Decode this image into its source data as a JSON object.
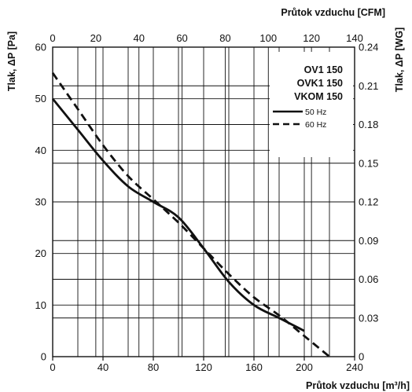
{
  "chart_data": {
    "type": "line",
    "title": "",
    "x_bottom": {
      "label": "Průtok vzduchu [m³/h]",
      "range": [
        0,
        240
      ],
      "ticks": [
        "0",
        "40",
        "80",
        "120",
        "160",
        "200",
        "240"
      ]
    },
    "x_top": {
      "label": "Průtok vzduchu [CFM]",
      "range": [
        0,
        140
      ],
      "ticks": [
        "0",
        "20",
        "40",
        "60",
        "80",
        "100",
        "120",
        "140"
      ]
    },
    "y_left": {
      "label": "Tlak, ΔP [Pa]",
      "range": [
        0,
        60
      ],
      "ticks": [
        "0",
        "10",
        "20",
        "30",
        "40",
        "50",
        "60"
      ]
    },
    "y_right": {
      "label": "Tlak, ΔP [WG]",
      "range": [
        0,
        0.24
      ],
      "ticks": [
        "0",
        "0.03",
        "0.06",
        "0.09",
        "0.12",
        "0.15",
        "0.18",
        "0.21",
        "0.24"
      ]
    },
    "grid": true,
    "legend": {
      "placement": "top-right",
      "models": [
        "OV1 150",
        "OVK1 150",
        "VKOM 150"
      ]
    },
    "series": [
      {
        "name": "50 Hz",
        "style": "solid",
        "x": [
          0,
          20,
          40,
          60,
          80,
          100,
          120,
          140,
          160,
          180,
          200
        ],
        "y": [
          50,
          44,
          38,
          33,
          30,
          27,
          21,
          14.5,
          10,
          7.5,
          5
        ]
      },
      {
        "name": "60 Hz",
        "style": "dashed",
        "x": [
          0,
          20,
          40,
          60,
          80,
          100,
          120,
          140,
          160,
          180,
          200,
          220
        ],
        "y": [
          55,
          48,
          41,
          35,
          30.5,
          26,
          21,
          16,
          11.5,
          8,
          4,
          0
        ]
      }
    ]
  }
}
